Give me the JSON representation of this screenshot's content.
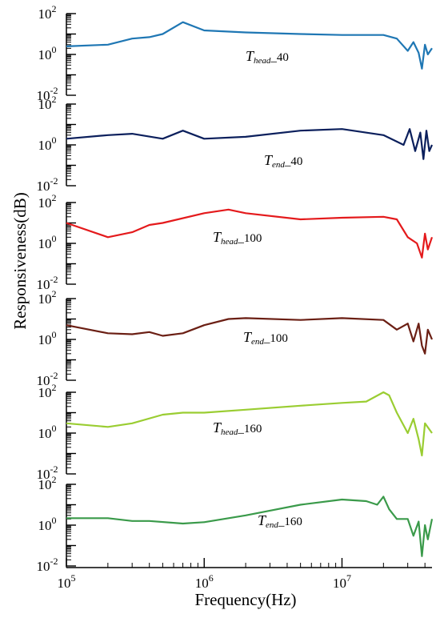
{
  "chart_data": {
    "type": "line",
    "xlabel": "Frequency(Hz)",
    "ylabel": "Responsiveness(dB)",
    "xscale": "log",
    "yscale": "log",
    "xlim": [
      100000,
      45000000
    ],
    "x_ticks": [
      {
        "base": "10",
        "exp": "5"
      },
      {
        "base": "10",
        "exp": "6"
      },
      {
        "base": "10",
        "exp": "7"
      }
    ],
    "y_ticks": [
      {
        "base": "10",
        "exp": "2"
      },
      {
        "base": "10",
        "exp": "0"
      },
      {
        "base": "10",
        "exp": "-2"
      }
    ],
    "panels": [
      {
        "label_main": "T",
        "label_sub": "head",
        "label_suffix": "_40",
        "color": "#1f77b4",
        "ylim": [
          0.01,
          100
        ],
        "x": [
          100000,
          200000,
          300000,
          400000,
          500000,
          700000,
          1000000,
          2000000,
          5000000,
          10000000,
          20000000,
          25000000,
          30000000,
          33000000,
          36000000,
          38000000,
          40000000,
          42000000,
          45000000
        ],
        "y": [
          2.5,
          3,
          6,
          7,
          10,
          38,
          15,
          12,
          10,
          9,
          9,
          6,
          1.5,
          4,
          1.2,
          0.2,
          3,
          1,
          2
        ]
      },
      {
        "label_main": "T",
        "label_sub": "end",
        "label_suffix": "_40",
        "color": "#0b1f5c",
        "ylim": [
          0.01,
          100
        ],
        "x": [
          100000,
          200000,
          300000,
          500000,
          700000,
          1000000,
          2000000,
          5000000,
          10000000,
          20000000,
          28000000,
          31000000,
          34000000,
          37000000,
          39000000,
          41000000,
          43000000,
          45000000
        ],
        "y": [
          2,
          3,
          3.5,
          2,
          5,
          2,
          2.5,
          5,
          6,
          3,
          1,
          6,
          0.5,
          4,
          0.2,
          5,
          0.5,
          1
        ]
      },
      {
        "label_main": "T",
        "label_sub": "head",
        "label_suffix": "_100",
        "color": "#e41a1c",
        "ylim": [
          0.01,
          100
        ],
        "x": [
          100000,
          200000,
          300000,
          400000,
          500000,
          1000000,
          1500000,
          2000000,
          5000000,
          10000000,
          20000000,
          25000000,
          30000000,
          35000000,
          38000000,
          40000000,
          42000000,
          45000000
        ],
        "y": [
          10,
          2,
          3.5,
          8,
          10,
          30,
          45,
          30,
          15,
          18,
          20,
          15,
          2,
          1,
          0.2,
          3,
          0.5,
          2
        ]
      },
      {
        "label_main": "T",
        "label_sub": "end",
        "label_suffix": "_100",
        "color": "#6b1f14",
        "ylim": [
          0.01,
          100
        ],
        "x": [
          100000,
          200000,
          300000,
          400000,
          500000,
          700000,
          1000000,
          1500000,
          2000000,
          5000000,
          10000000,
          20000000,
          25000000,
          30000000,
          33000000,
          36000000,
          38000000,
          40000000,
          42000000,
          45000000
        ],
        "y": [
          5,
          2,
          1.8,
          2.3,
          1.5,
          2,
          5,
          10,
          11,
          9,
          11,
          9,
          3,
          6,
          0.8,
          6,
          0.5,
          0.2,
          3,
          1
        ]
      },
      {
        "label_main": "T",
        "label_sub": "head",
        "label_suffix": "_160",
        "color": "#9acd32",
        "ylim": [
          0.01,
          100
        ],
        "x": [
          100000,
          200000,
          300000,
          500000,
          700000,
          1000000,
          2000000,
          5000000,
          10000000,
          15000000,
          20000000,
          22000000,
          25000000,
          30000000,
          33000000,
          36000000,
          38000000,
          40000000,
          45000000
        ],
        "y": [
          3,
          2,
          3,
          8,
          10,
          10,
          14,
          22,
          30,
          35,
          100,
          70,
          10,
          1,
          5,
          0.5,
          0.08,
          3,
          1
        ]
      },
      {
        "label_main": "T",
        "label_sub": "end",
        "label_suffix": "_160",
        "color": "#3a9a4a",
        "ylim": [
          0.01,
          100
        ],
        "x": [
          100000,
          200000,
          300000,
          400000,
          700000,
          1000000,
          2000000,
          5000000,
          10000000,
          15000000,
          18000000,
          20000000,
          22000000,
          25000000,
          30000000,
          33000000,
          36000000,
          38000000,
          40000000,
          42000000,
          45000000
        ],
        "y": [
          2.2,
          2.2,
          1.6,
          1.6,
          1.2,
          1.4,
          3,
          10,
          18,
          15,
          10,
          25,
          6,
          2,
          2,
          0.3,
          1.5,
          0.03,
          1,
          0.2,
          2
        ]
      }
    ]
  }
}
